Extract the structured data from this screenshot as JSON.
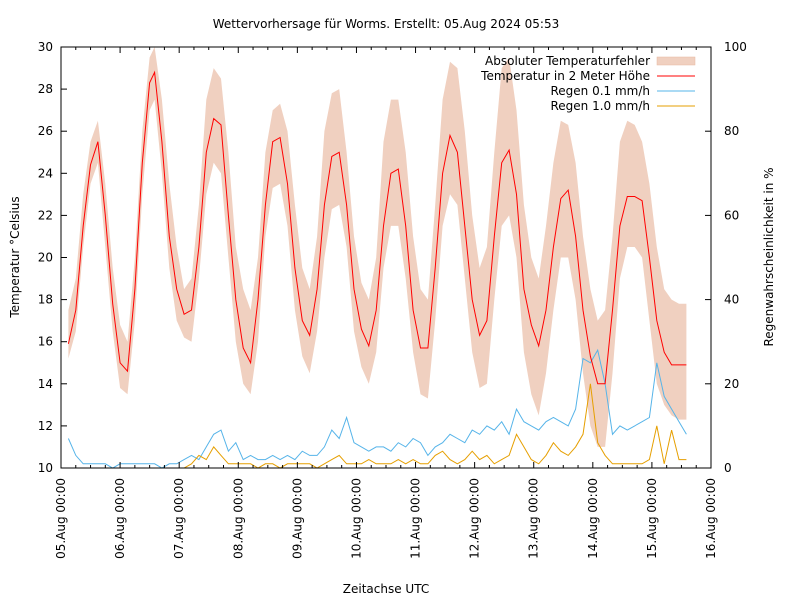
{
  "chart_data": {
    "type": "line",
    "title": "Wettervorhersage für Worms. Erstellt: 05.Aug 2024 05:53",
    "xlabel": "Zeitachse UTC",
    "ylabel": "Temperatur °Celsius",
    "y2label": "Regenwahrscheinlichkeit in %",
    "xlim_hours": [
      0,
      264
    ],
    "ylim": [
      10,
      30
    ],
    "y2lim": [
      0,
      100
    ],
    "x_ticks": [
      "05.Aug 00:00",
      "06.Aug 00:00",
      "07.Aug 00:00",
      "08.Aug 00:00",
      "09.Aug 00:00",
      "10.Aug 00:00",
      "11.Aug 00:00",
      "12.Aug 00:00",
      "13.Aug 00:00",
      "14.Aug 00:00",
      "15.Aug 00:00",
      "16.Aug 00:00"
    ],
    "y_ticks": [
      "10",
      "12",
      "14",
      "16",
      "18",
      "20",
      "22",
      "24",
      "26",
      "28",
      "30"
    ],
    "y2_ticks": [
      "0",
      "20",
      "40",
      "60",
      "80",
      "100"
    ],
    "legend_position": "top-right",
    "legend": [
      {
        "label": "Absoluter Temperaturfehler",
        "color": "#f0d0c0",
        "kind": "band"
      },
      {
        "label": "Temperatur in 2 Meter Höhe",
        "color": "#ff0000",
        "kind": "line"
      },
      {
        "label": "Regen 0.1 mm/h",
        "color": "#56b4e9",
        "kind": "line"
      },
      {
        "label": "Regen 1.0 mm/h",
        "color": "#e69f00",
        "kind": "line"
      }
    ],
    "hours": [
      3,
      6,
      9,
      12,
      15,
      18,
      21,
      24,
      27,
      30,
      33,
      36,
      38,
      41,
      44,
      47,
      50,
      53,
      56,
      59,
      62,
      65,
      68,
      71,
      74,
      77,
      80,
      83,
      86,
      89,
      92,
      95,
      98,
      101,
      104,
      107,
      110,
      113,
      116,
      119,
      122,
      125,
      128,
      131,
      134,
      137,
      140,
      143,
      146,
      149,
      152,
      155,
      158,
      161,
      164,
      167,
      170,
      173,
      176,
      179,
      182,
      185,
      188,
      191,
      194,
      197,
      200,
      203,
      206,
      209,
      212,
      215,
      218,
      221,
      224,
      227,
      230,
      233,
      236,
      239,
      242,
      245,
      248,
      251,
      254
    ],
    "series": [
      {
        "name": "Temperatur in 2 Meter Höhe",
        "values": [
          15.9,
          17.5,
          21.5,
          24.4,
          25.5,
          22.0,
          17.8,
          15.0,
          14.6,
          18.5,
          24.5,
          28.3,
          28.8,
          25.5,
          21.0,
          18.5,
          17.3,
          17.5,
          20.5,
          25.0,
          26.6,
          26.3,
          22.0,
          18.0,
          15.7,
          15.0,
          18.0,
          22.5,
          25.5,
          25.7,
          23.5,
          19.5,
          17.0,
          16.3,
          18.5,
          22.5,
          24.8,
          25.0,
          22.5,
          18.5,
          16.6,
          15.8,
          17.5,
          21.5,
          24.0,
          24.2,
          21.5,
          17.5,
          15.7,
          15.7,
          19.5,
          24.0,
          25.8,
          25.0,
          21.5,
          18.0,
          16.3,
          17.0,
          21.0,
          24.5,
          25.1,
          23.0,
          18.5,
          16.8,
          15.8,
          17.5,
          20.5,
          22.8,
          23.2,
          21.0,
          17.5,
          15.3,
          14.0,
          14.0,
          17.5,
          21.5,
          22.9,
          22.9,
          22.7,
          20.0,
          17.0,
          15.5,
          14.9,
          14.9,
          14.9
        ]
      },
      {
        "name": "Absoluter Temperaturfehler (oben)",
        "values": [
          17.5,
          19.0,
          23.0,
          25.5,
          26.5,
          23.5,
          19.5,
          16.8,
          16.0,
          20.0,
          26.0,
          29.5,
          30.0,
          27.5,
          23.5,
          20.5,
          18.5,
          19.0,
          22.5,
          27.5,
          29.0,
          28.5,
          25.0,
          20.5,
          18.5,
          17.5,
          20.0,
          25.0,
          27.0,
          27.3,
          26.0,
          22.5,
          19.5,
          18.5,
          21.0,
          26.0,
          27.8,
          28.0,
          25.0,
          21.0,
          18.8,
          18.0,
          20.0,
          25.5,
          27.5,
          27.5,
          25.0,
          21.0,
          18.5,
          18.0,
          22.5,
          27.5,
          29.3,
          29.0,
          26.0,
          22.0,
          19.5,
          20.5,
          25.0,
          29.0,
          29.5,
          27.0,
          22.5,
          20.0,
          19.0,
          21.5,
          24.5,
          26.5,
          26.3,
          24.5,
          21.0,
          18.5,
          17.0,
          17.5,
          21.0,
          25.5,
          26.5,
          26.3,
          25.5,
          23.5,
          20.5,
          18.5,
          18.0,
          17.8,
          17.8
        ]
      },
      {
        "name": "Absoluter Temperaturfehler (unten)",
        "values": [
          15.2,
          16.5,
          20.5,
          23.5,
          24.5,
          20.5,
          16.5,
          13.8,
          13.5,
          17.0,
          23.0,
          27.0,
          27.5,
          24.0,
          19.5,
          17.0,
          16.2,
          16.0,
          19.0,
          23.0,
          24.5,
          24.0,
          20.0,
          16.0,
          14.0,
          13.5,
          16.0,
          21.0,
          23.3,
          23.5,
          21.5,
          17.5,
          15.3,
          14.5,
          16.5,
          20.0,
          22.3,
          22.5,
          20.5,
          16.5,
          14.8,
          14.0,
          15.5,
          19.5,
          21.5,
          21.5,
          19.0,
          15.5,
          13.5,
          13.3,
          17.0,
          21.5,
          23.0,
          22.5,
          19.0,
          15.5,
          13.8,
          14.0,
          18.0,
          21.5,
          22.0,
          20.0,
          15.5,
          13.5,
          12.5,
          14.5,
          17.5,
          20.0,
          20.0,
          18.0,
          14.5,
          12.0,
          11.0,
          11.0,
          14.5,
          19.0,
          20.5,
          20.5,
          20.0,
          17.0,
          14.0,
          13.0,
          12.5,
          12.3,
          12.3
        ]
      },
      {
        "name": "Regen 0.1 mm/h",
        "axis": "y2",
        "values": [
          7,
          3,
          1,
          1,
          1,
          1,
          0,
          1,
          1,
          1,
          1,
          1,
          1,
          0,
          1,
          1,
          2,
          3,
          2,
          5,
          8,
          9,
          4,
          6,
          2,
          3,
          2,
          2,
          3,
          2,
          3,
          2,
          4,
          3,
          3,
          5,
          9,
          7,
          12,
          6,
          5,
          4,
          5,
          5,
          4,
          6,
          5,
          7,
          6,
          3,
          5,
          6,
          8,
          7,
          6,
          9,
          8,
          10,
          9,
          11,
          8,
          14,
          11,
          10,
          9,
          11,
          12,
          11,
          10,
          14,
          26,
          25,
          28,
          20,
          8,
          10,
          9,
          10,
          11,
          12,
          25,
          17,
          14,
          11,
          8
        ]
      },
      {
        "name": "Regen 1.0 mm/h",
        "axis": "y2",
        "values": [
          0,
          0,
          0,
          0,
          0,
          0,
          0,
          0,
          0,
          0,
          0,
          0,
          0,
          0,
          0,
          0,
          0,
          1,
          3,
          2,
          5,
          3,
          1,
          1,
          1,
          1,
          0,
          1,
          1,
          0,
          1,
          1,
          1,
          1,
          0,
          1,
          2,
          3,
          1,
          1,
          1,
          2,
          1,
          1,
          1,
          2,
          1,
          2,
          1,
          1,
          3,
          4,
          2,
          1,
          2,
          4,
          2,
          3,
          1,
          2,
          3,
          8,
          5,
          2,
          1,
          3,
          6,
          4,
          3,
          5,
          8,
          20,
          6,
          3,
          1,
          1,
          1,
          1,
          1,
          2,
          10,
          1,
          9,
          2,
          2
        ]
      }
    ]
  }
}
